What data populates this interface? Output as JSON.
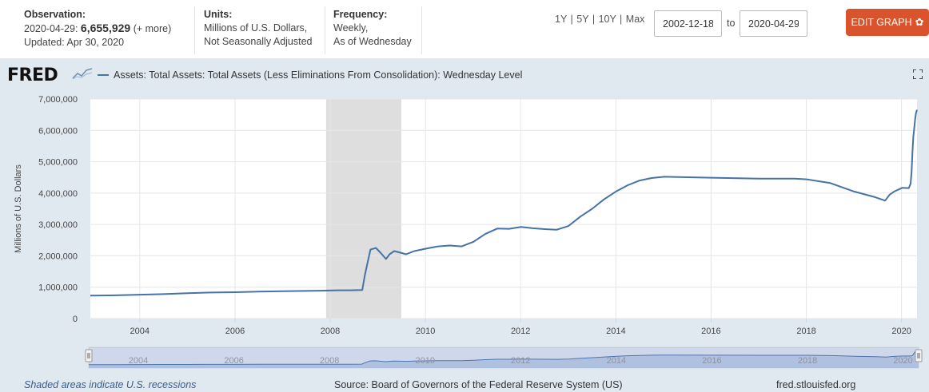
{
  "observation": {
    "label": "Observation:",
    "date": "2020-04-29:",
    "value": "6,655,929",
    "more": "(+ more)",
    "updated": "Updated: Apr 30, 2020"
  },
  "units": {
    "label": "Units:",
    "line1": "Millions of U.S. Dollars,",
    "line2": "Not Seasonally Adjusted"
  },
  "frequency": {
    "label": "Frequency:",
    "line1": "Weekly,",
    "line2": "As of Wednesday"
  },
  "range_buttons": [
    "1Y",
    "5Y",
    "10Y",
    "Max"
  ],
  "date_start": "2002-12-18",
  "date_end": "2020-04-29",
  "to_label": "to",
  "edit_button": "EDIT GRAPH",
  "logo": "FRED",
  "legend_label": "Assets: Total Assets: Total Assets (Less Eliminations From Consolidation): Wednesday Level",
  "fullscreen_icon": "fullscreen-icon",
  "footer": {
    "recession_note": "Shaded areas indicate U.S. recessions",
    "source": "Source: Board of Governors of the Federal Reserve System (US)",
    "site": "fred.stlouisfed.org"
  },
  "colors": {
    "line": "#4572a7",
    "recession": "#dedede",
    "panel": "#e1e9f0",
    "edit_button": "#d9532c",
    "navigator_fill": "#c3d2e6"
  },
  "chart_data": {
    "type": "line",
    "title": "",
    "xlabel": "",
    "ylabel": "Millions of U.S. Dollars",
    "x_range": [
      "2002-12-18",
      "2020-04-29"
    ],
    "ylim": [
      0,
      7000000
    ],
    "y_ticks": [
      0,
      1000000,
      2000000,
      3000000,
      4000000,
      5000000,
      6000000,
      7000000
    ],
    "y_tick_labels": [
      "0",
      "1,000,000",
      "2,000,000",
      "3,000,000",
      "4,000,000",
      "5,000,000",
      "6,000,000",
      "7,000,000"
    ],
    "x_ticks": [
      "2004",
      "2006",
      "2008",
      "2010",
      "2012",
      "2014",
      "2016",
      "2018",
      "2020"
    ],
    "navigator_ticks": [
      "2004",
      "2006",
      "2008",
      "2010",
      "2012",
      "2014",
      "2016",
      "2018",
      "2020"
    ],
    "grid": true,
    "legend_position": "top-left",
    "recessions": [
      {
        "start": "2007-12-01",
        "end": "2009-06-30"
      }
    ],
    "series": [
      {
        "name": "Assets: Total Assets: Total Assets (Less Eliminations From Consolidation): Wednesday Level",
        "points": [
          [
            "2002-12-18",
            730000
          ],
          [
            "2003-06-30",
            740000
          ],
          [
            "2004-01-01",
            760000
          ],
          [
            "2004-07-01",
            780000
          ],
          [
            "2005-01-01",
            810000
          ],
          [
            "2005-07-01",
            830000
          ],
          [
            "2006-01-01",
            840000
          ],
          [
            "2006-07-01",
            860000
          ],
          [
            "2007-01-01",
            870000
          ],
          [
            "2007-07-01",
            880000
          ],
          [
            "2007-12-01",
            890000
          ],
          [
            "2008-03-01",
            900000
          ],
          [
            "2008-06-01",
            900000
          ],
          [
            "2008-09-03",
            910000
          ],
          [
            "2008-09-24",
            1400000
          ],
          [
            "2008-10-15",
            1800000
          ],
          [
            "2008-11-05",
            2200000
          ],
          [
            "2008-12-17",
            2250000
          ],
          [
            "2009-01-21",
            2100000
          ],
          [
            "2009-03-04",
            1900000
          ],
          [
            "2009-04-01",
            2050000
          ],
          [
            "2009-05-06",
            2150000
          ],
          [
            "2009-06-24",
            2100000
          ],
          [
            "2009-08-05",
            2050000
          ],
          [
            "2009-10-07",
            2150000
          ],
          [
            "2010-01-06",
            2230000
          ],
          [
            "2010-04-07",
            2300000
          ],
          [
            "2010-07-07",
            2330000
          ],
          [
            "2010-10-06",
            2300000
          ],
          [
            "2011-01-05",
            2450000
          ],
          [
            "2011-04-06",
            2700000
          ],
          [
            "2011-07-06",
            2870000
          ],
          [
            "2011-10-05",
            2860000
          ],
          [
            "2012-01-04",
            2920000
          ],
          [
            "2012-04-04",
            2880000
          ],
          [
            "2012-07-04",
            2850000
          ],
          [
            "2012-10-03",
            2830000
          ],
          [
            "2013-01-02",
            2950000
          ],
          [
            "2013-04-03",
            3250000
          ],
          [
            "2013-07-03",
            3500000
          ],
          [
            "2013-10-02",
            3800000
          ],
          [
            "2014-01-01",
            4050000
          ],
          [
            "2014-04-02",
            4250000
          ],
          [
            "2014-07-02",
            4400000
          ],
          [
            "2014-10-01",
            4480000
          ],
          [
            "2015-01-07",
            4520000
          ],
          [
            "2016-01-06",
            4490000
          ],
          [
            "2017-01-04",
            4460000
          ],
          [
            "2017-10-04",
            4460000
          ],
          [
            "2018-01-03",
            4440000
          ],
          [
            "2018-07-04",
            4320000
          ],
          [
            "2019-01-02",
            4050000
          ],
          [
            "2019-06-05",
            3880000
          ],
          [
            "2019-08-28",
            3760000
          ],
          [
            "2019-10-02",
            3950000
          ],
          [
            "2019-11-06",
            4050000
          ],
          [
            "2020-01-08",
            4170000
          ],
          [
            "2020-02-26",
            4160000
          ],
          [
            "2020-03-11",
            4300000
          ],
          [
            "2020-03-18",
            4670000
          ],
          [
            "2020-03-25",
            5300000
          ],
          [
            "2020-04-01",
            5800000
          ],
          [
            "2020-04-08",
            6080000
          ],
          [
            "2020-04-15",
            6370000
          ],
          [
            "2020-04-22",
            6570000
          ],
          [
            "2020-04-29",
            6655929
          ]
        ]
      }
    ]
  }
}
